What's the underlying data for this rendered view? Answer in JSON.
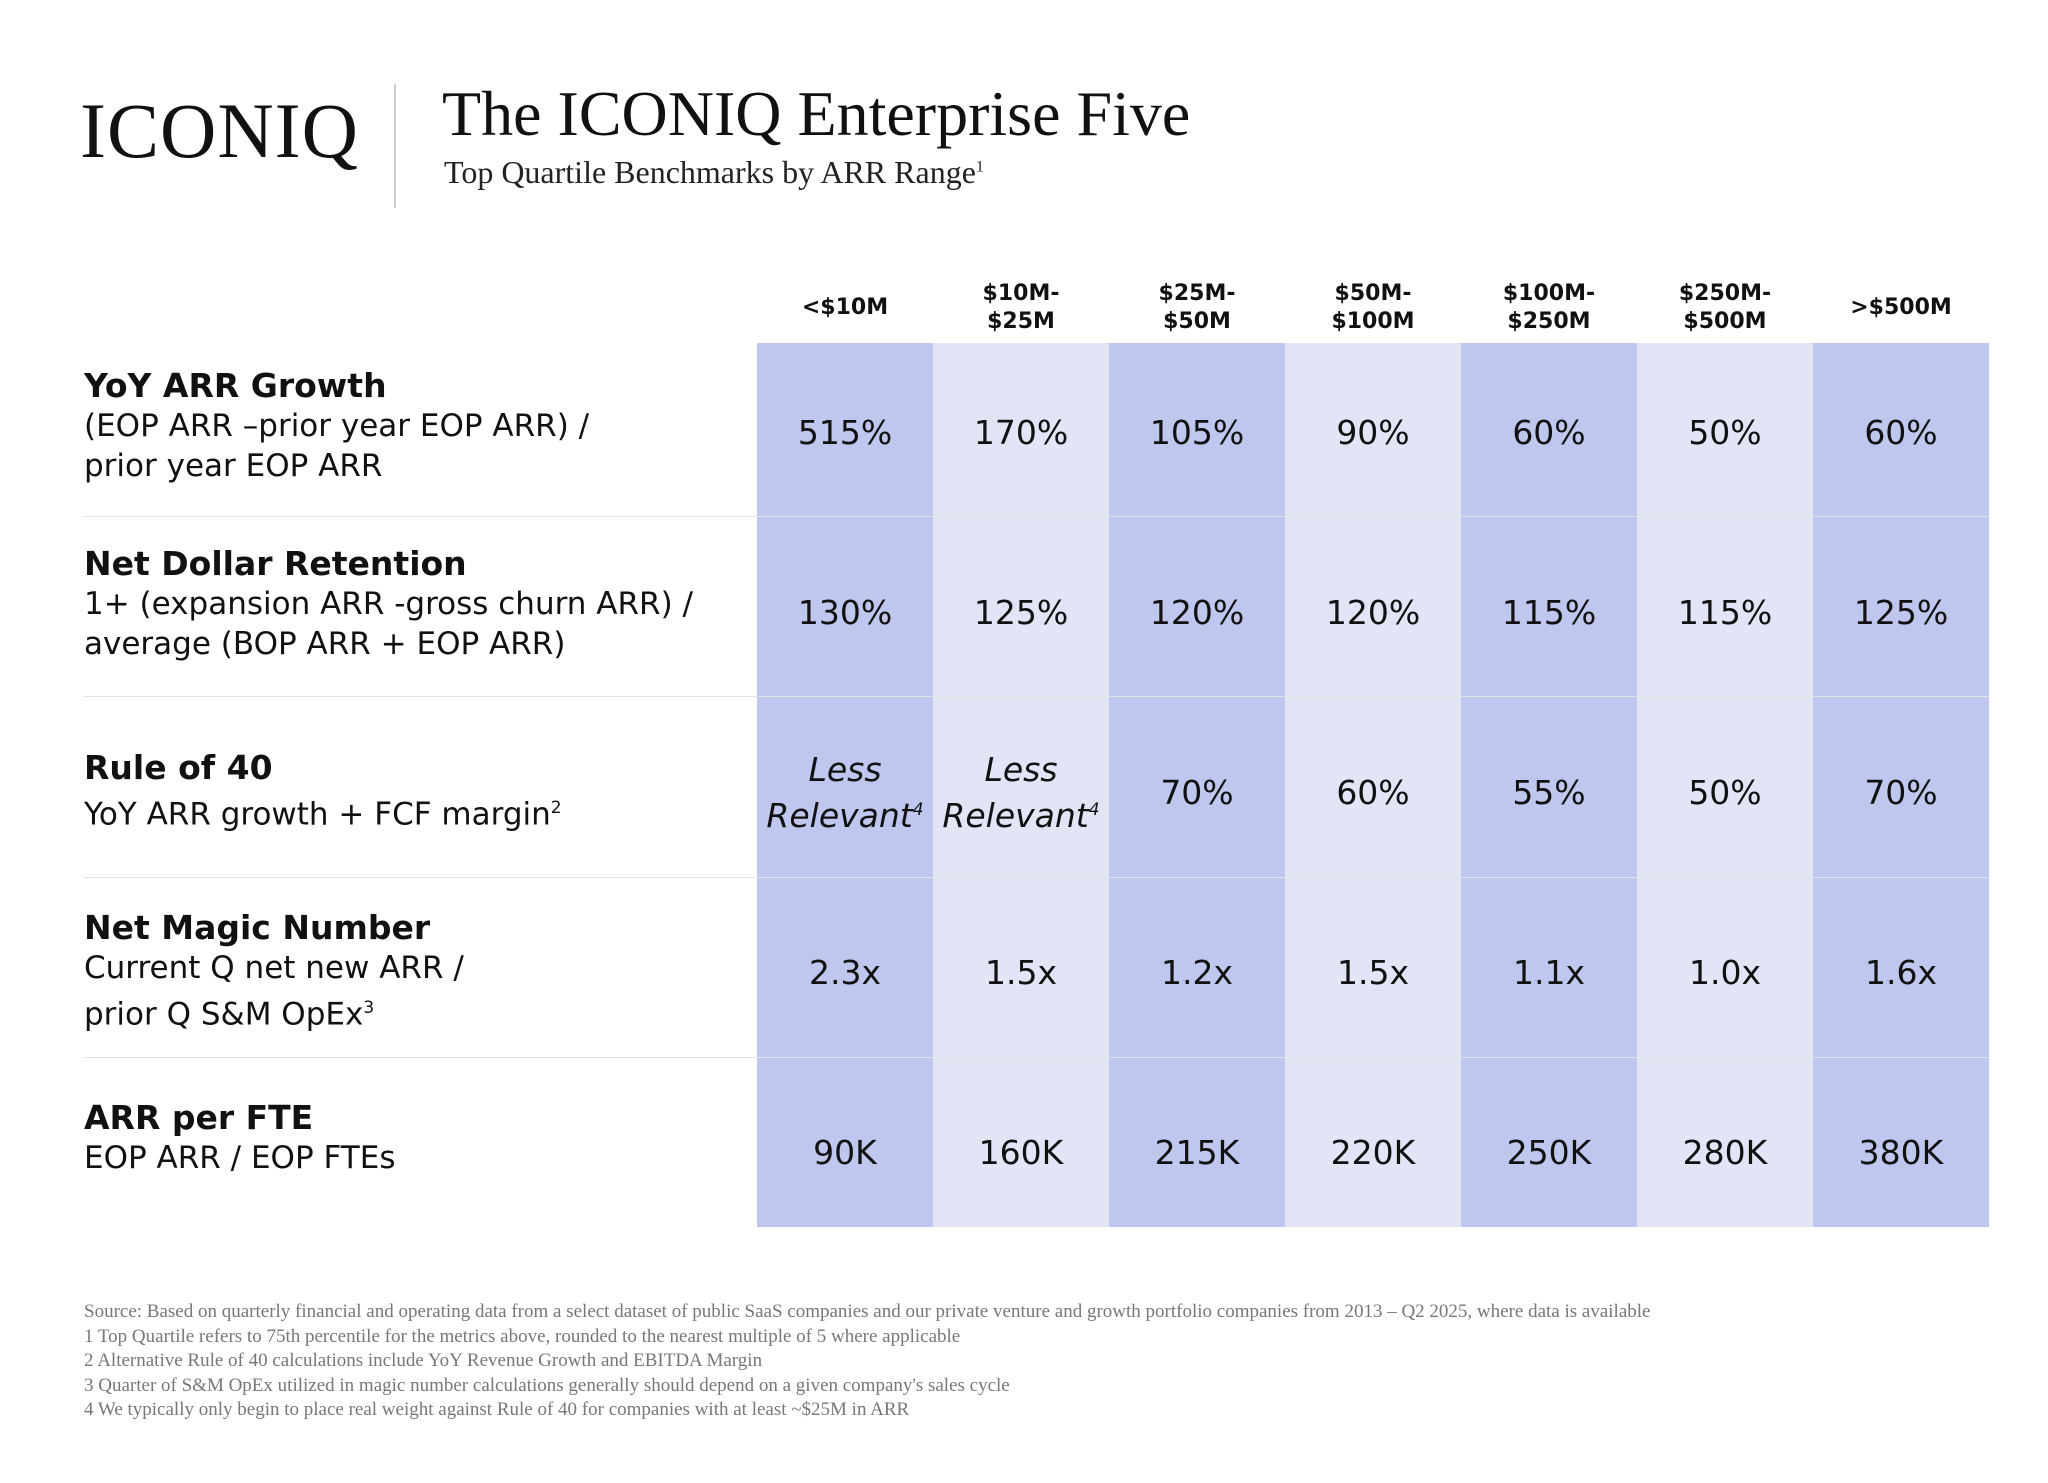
{
  "header": {
    "logo_text": "ICONIQ",
    "title": "The ICONIQ Enterprise Five",
    "subtitle": "Top Quartile Benchmarks by ARR Range",
    "subtitle_footnote": "1"
  },
  "columns": [
    {
      "label": "<$10M",
      "shade": "dark"
    },
    {
      "label": "$10M-\n$25M",
      "shade": "light"
    },
    {
      "label": "$25M-\n$50M",
      "shade": "dark"
    },
    {
      "label": "$50M-\n$100M",
      "shade": "light"
    },
    {
      "label": "$100M-\n$250M",
      "shade": "dark"
    },
    {
      "label": "$250M-\n$500M",
      "shade": "light"
    },
    {
      "label": ">$500M",
      "shade": "dark"
    }
  ],
  "colors": {
    "dark_column": "#bfc7ee",
    "light_column": "#e1e5f6"
  },
  "rows": [
    {
      "title": "YoY ARR Growth",
      "description": "(EOP ARR –prior year EOP ARR) /\nprior year EOP ARR",
      "footnote": "",
      "values": [
        "515%",
        "170%",
        "105%",
        "90%",
        "60%",
        "50%",
        "60%"
      ]
    },
    {
      "title": "Net Dollar Retention",
      "description": "1+ (expansion ARR -gross churn ARR) /\naverage (BOP ARR + EOP ARR)",
      "footnote": "",
      "values": [
        "130%",
        "125%",
        "120%",
        "120%",
        "115%",
        "115%",
        "125%"
      ]
    },
    {
      "title": "Rule of 40",
      "description": "YoY ARR growth + FCF margin",
      "footnote": "2",
      "values": [
        "Less|Relevant|4",
        "Less|Relevant|4",
        "70%",
        "60%",
        "55%",
        "50%",
        "70%"
      ]
    },
    {
      "title": "Net Magic Number",
      "description": "Current Q net new ARR /\nprior Q S&M OpEx",
      "footnote": "3",
      "values": [
        "2.3x",
        "1.5x",
        "1.2x",
        "1.5x",
        "1.1x",
        "1.0x",
        "1.6x"
      ]
    },
    {
      "title": "ARR per FTE",
      "description": "EOP ARR / EOP FTEs",
      "footnote": "",
      "values": [
        "90K",
        "160K",
        "215K",
        "220K",
        "250K",
        "280K",
        "380K"
      ]
    }
  ],
  "footnotes": [
    "Source: Based on quarterly financial and operating data from a select dataset of public SaaS companies and our private venture and growth portfolio companies from 2013 – Q2 2025, where data is available",
    "1 Top Quartile refers to 75th percentile for the metrics above, rounded to the nearest multiple of 5 where applicable",
    "2 Alternative Rule of 40 calculations include YoY Revenue Growth and EBITDA Margin",
    "3 Quarter of S&M OpEx utilized in magic number calculations generally should depend on a given company's sales cycle",
    "4 We typically only begin to place real weight against Rule of 40 for companies with at least ~$25M in ARR"
  ]
}
